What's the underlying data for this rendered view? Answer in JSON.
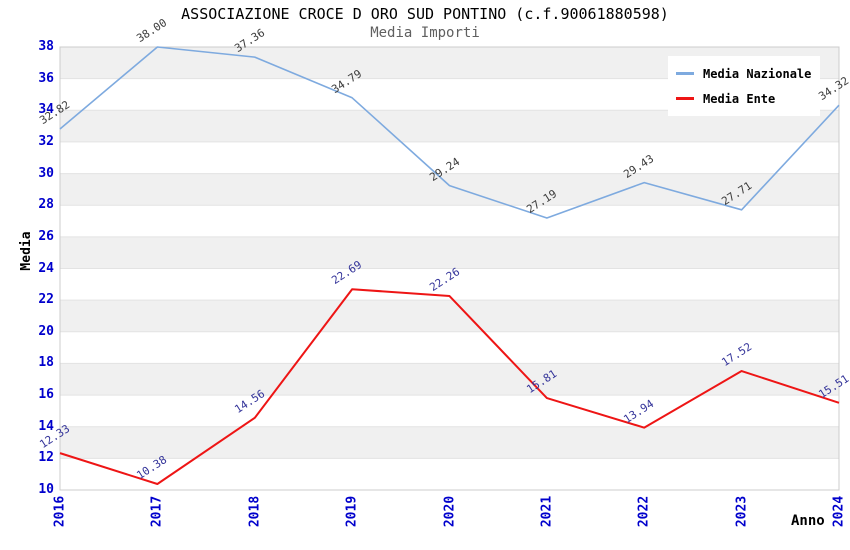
{
  "title": "ASSOCIAZIONE CROCE D ORO SUD PONTINO (c.f.90061880598)",
  "subtitle": "Media Importi",
  "axes": {
    "x_label": "Anno",
    "y_label": "Media"
  },
  "colors": {
    "nazionale_line": "#7EAADF",
    "ente_line": "#EE1515",
    "tick_label": "#0000CC",
    "nazionale_value_label": "#3A3A3A",
    "ente_value_label": "#333399",
    "band_gray": "#F0F0F0",
    "grid_line": "#E3E3E3",
    "plot_border": "#CCCCCC",
    "subtitle_text": "#606060"
  },
  "chart_data": {
    "type": "line",
    "title": "ASSOCIAZIONE CROCE D ORO SUD PONTINO (c.f.90061880598)",
    "subtitle": "Media Importi",
    "x": [
      "2016",
      "2017",
      "2018",
      "2019",
      "2020",
      "2021",
      "2022",
      "2023",
      "2024"
    ],
    "series": [
      {
        "name": "Media Nazionale",
        "values": [
          32.82,
          38.0,
          37.36,
          34.79,
          29.24,
          27.19,
          29.43,
          27.71,
          34.32
        ]
      },
      {
        "name": "Media Ente",
        "values": [
          12.33,
          10.38,
          14.56,
          22.69,
          22.26,
          15.81,
          13.94,
          17.52,
          15.51
        ]
      }
    ],
    "xlabel": "Anno",
    "ylabel": "Media",
    "ylim": [
      10,
      38
    ],
    "ytick_step": 2,
    "grid": "horizontal-bands-alternating",
    "legend_position": "top-right",
    "point_labels": "two-decimals-rotated"
  }
}
